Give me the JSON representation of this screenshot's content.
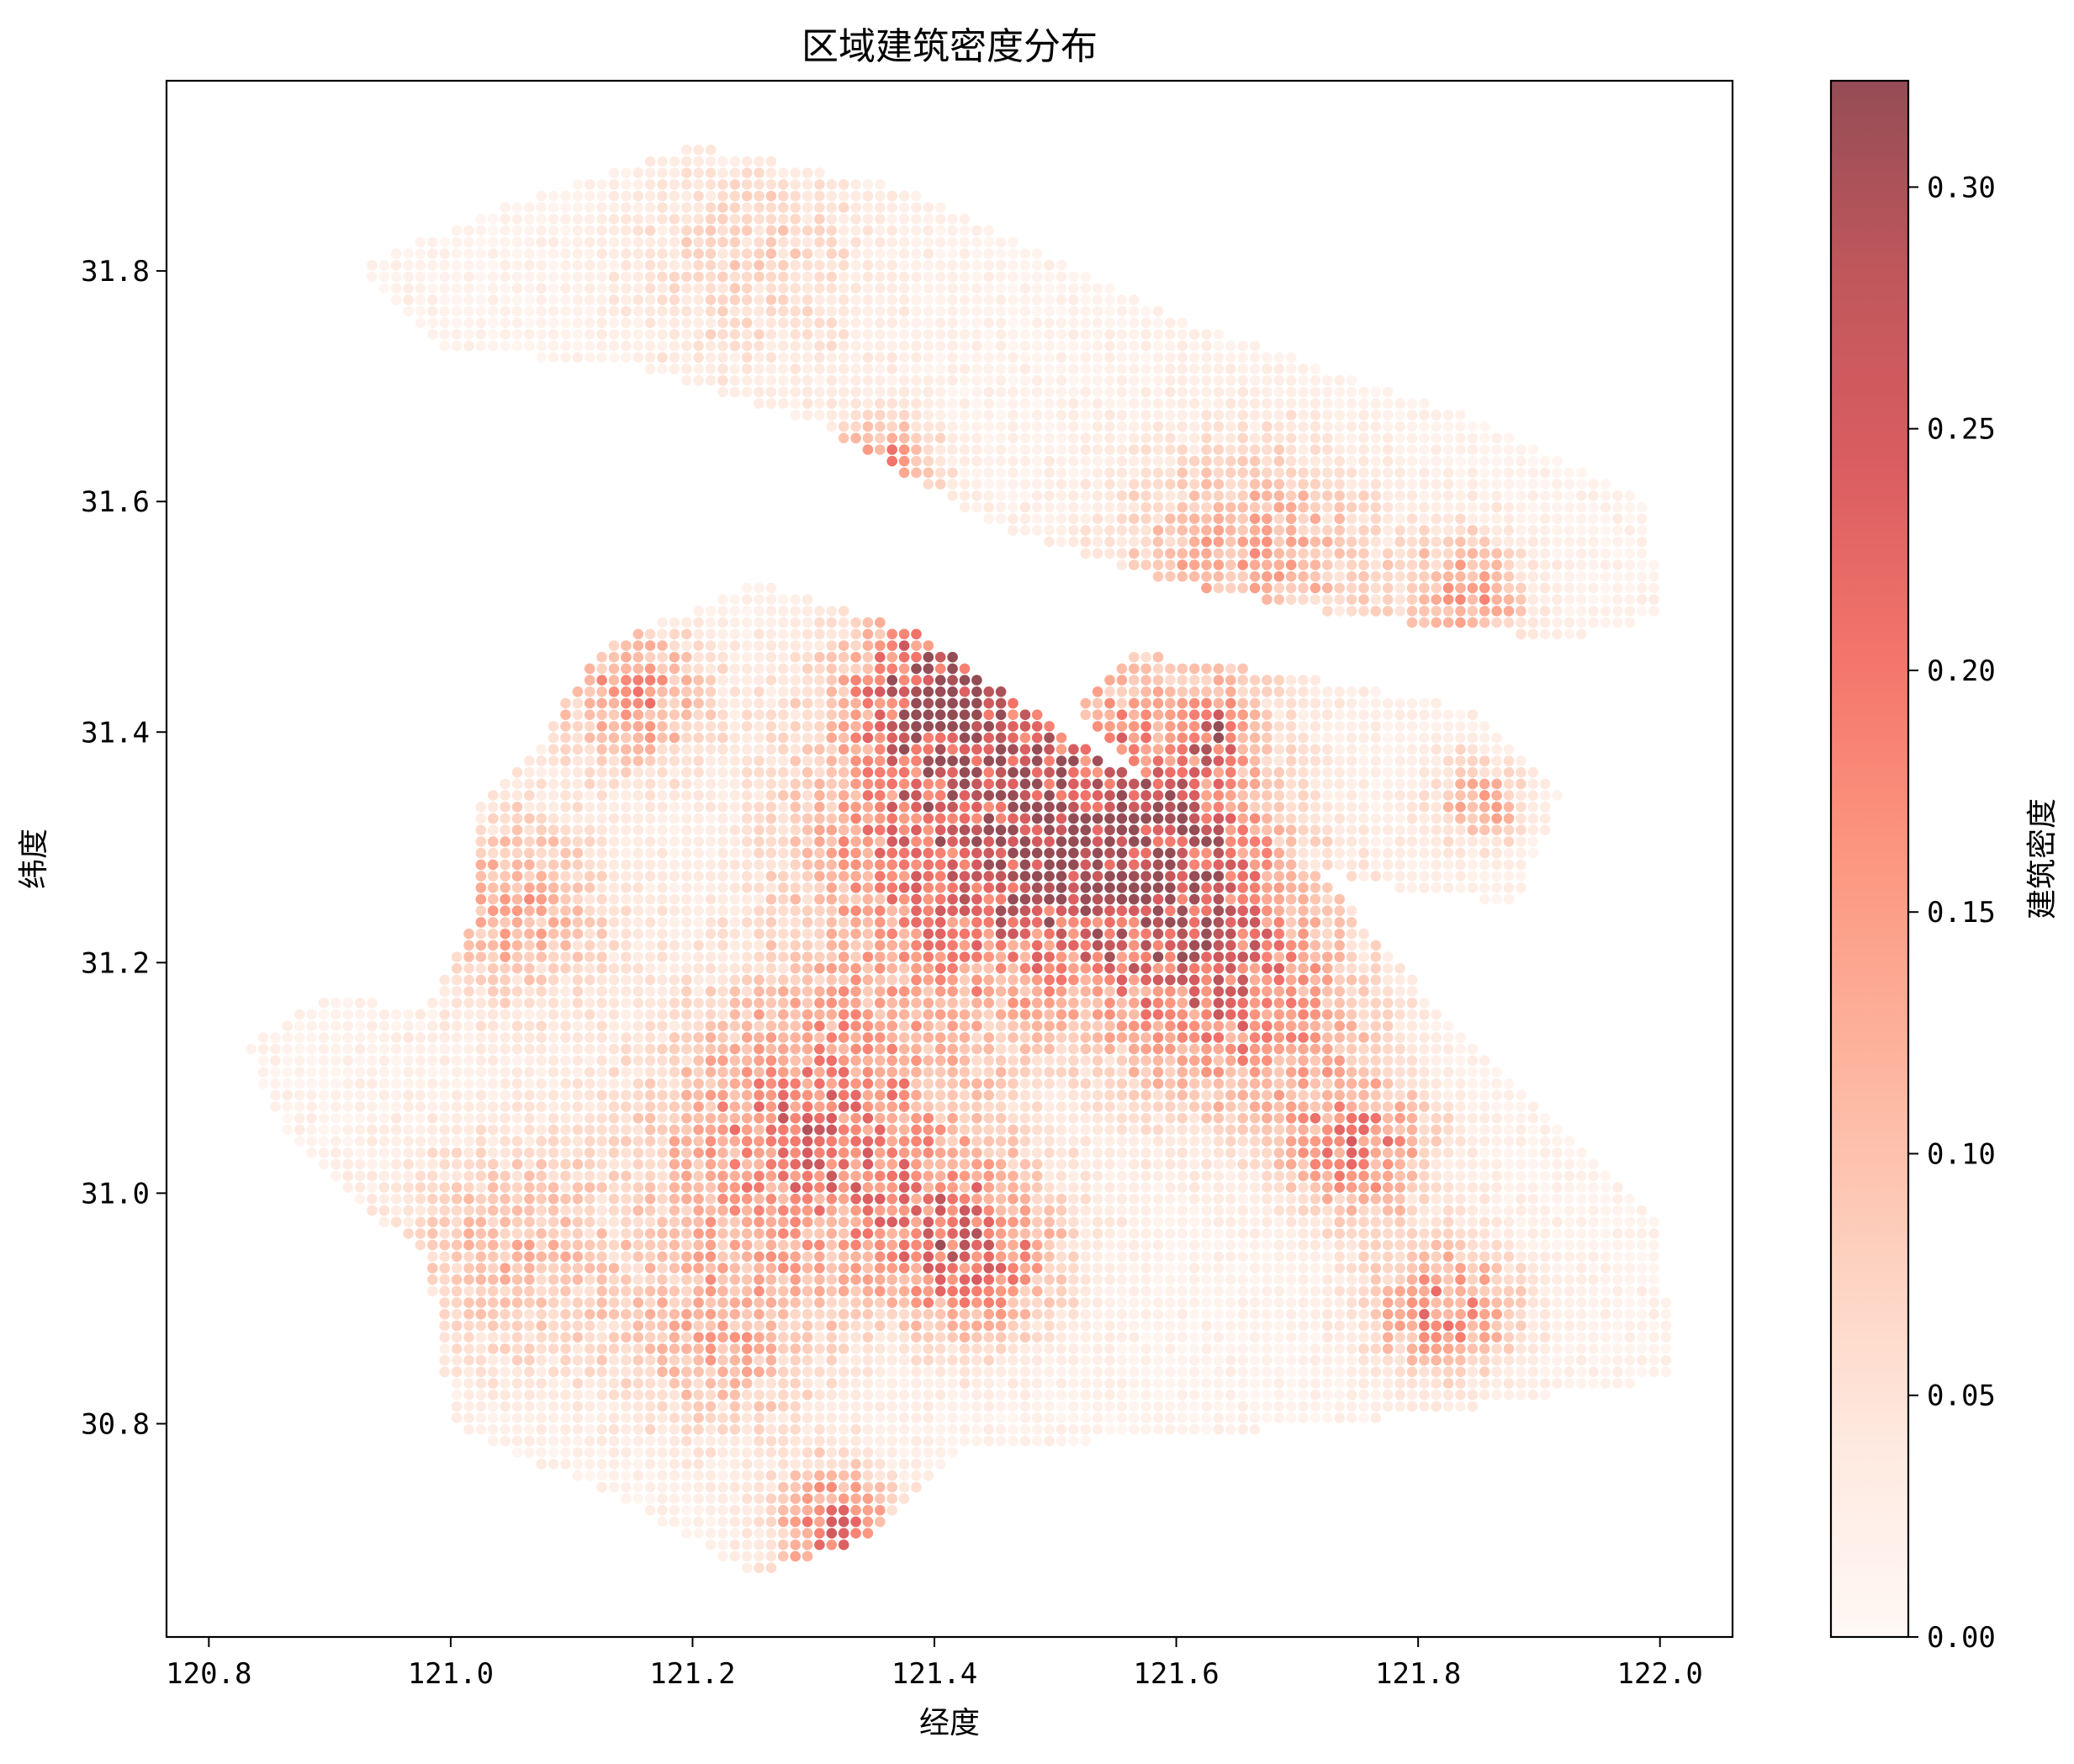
{
  "chart_data": {
    "type": "scatter",
    "title": "区域建筑密度分布",
    "xlabel": "经度",
    "ylabel": "纬度",
    "colorbar_label": "建筑密度",
    "colormap": "Reds",
    "alpha": 0.7,
    "xlim": [
      120.765,
      122.06
    ],
    "ylim": [
      30.615,
      31.965
    ],
    "clim": [
      0.0,
      0.322
    ],
    "xticks": [
      120.8,
      121.0,
      121.2,
      121.4,
      121.6,
      121.8,
      122.0
    ],
    "xtick_labels": [
      "120.8",
      "121.0",
      "121.2",
      "121.4",
      "121.6",
      "121.8",
      "122.0"
    ],
    "yticks": [
      30.8,
      31.0,
      31.2,
      31.4,
      31.6,
      31.8
    ],
    "ytick_labels": [
      "30.8",
      "31.0",
      "31.2",
      "31.4",
      "31.6",
      "31.8"
    ],
    "cticks": [
      0.0,
      0.05,
      0.1,
      0.15,
      0.2,
      0.25,
      0.3
    ],
    "ctick_labels": [
      "0.00",
      "0.05",
      "0.10",
      "0.15",
      "0.20",
      "0.25",
      "0.30"
    ],
    "grid": false,
    "colors": {
      "low": "#fff5f0",
      "high": "#67000d",
      "axes": "#000000",
      "background": "#ffffff"
    },
    "regions": [
      {
        "name": "main",
        "boundary": [
          [
            120.83,
            31.13
          ],
          [
            120.9,
            31.17
          ],
          [
            120.98,
            31.16
          ],
          [
            121.02,
            31.24
          ],
          [
            121.02,
            31.33
          ],
          [
            121.08,
            31.4
          ],
          [
            121.12,
            31.47
          ],
          [
            121.25,
            31.53
          ],
          [
            121.38,
            31.49
          ],
          [
            121.48,
            31.42
          ],
          [
            121.55,
            31.37
          ],
          [
            121.7,
            31.3
          ],
          [
            121.8,
            31.18
          ],
          [
            121.95,
            31.03
          ],
          [
            122.0,
            30.98
          ],
          [
            122.01,
            30.84
          ],
          [
            121.82,
            30.81
          ],
          [
            121.62,
            30.79
          ],
          [
            121.43,
            30.78
          ],
          [
            121.35,
            30.7
          ],
          [
            121.25,
            30.67
          ],
          [
            121.15,
            30.73
          ],
          [
            121.0,
            30.8
          ],
          [
            120.98,
            30.95
          ],
          [
            120.92,
            30.99
          ],
          [
            120.86,
            31.06
          ]
        ]
      },
      {
        "name": "north",
        "boundary": [
          [
            120.92,
            31.8
          ],
          [
            121.05,
            31.86
          ],
          [
            121.2,
            31.91
          ],
          [
            121.38,
            31.87
          ],
          [
            121.6,
            31.76
          ],
          [
            121.85,
            31.67
          ],
          [
            121.99,
            31.6
          ],
          [
            122.0,
            31.5
          ],
          [
            121.92,
            31.48
          ],
          [
            121.75,
            31.5
          ],
          [
            121.6,
            31.53
          ],
          [
            121.45,
            31.58
          ],
          [
            121.3,
            31.67
          ],
          [
            121.15,
            31.72
          ],
          [
            121.0,
            31.73
          ]
        ]
      },
      {
        "name": "island",
        "boundary": [
          [
            121.56,
            31.47
          ],
          [
            121.7,
            31.45
          ],
          [
            121.85,
            31.42
          ],
          [
            121.92,
            31.35
          ],
          [
            121.88,
            31.25
          ],
          [
            121.75,
            31.27
          ],
          [
            121.6,
            31.33
          ],
          [
            121.52,
            31.42
          ]
        ]
      }
    ],
    "hotspots": [
      {
        "x": 121.45,
        "y": 31.31,
        "value": 0.26,
        "spread": 0.14
      },
      {
        "x": 121.41,
        "y": 31.44,
        "value": 0.24,
        "spread": 0.07
      },
      {
        "x": 121.3,
        "y": 31.05,
        "value": 0.2,
        "spread": 0.12
      },
      {
        "x": 121.58,
        "y": 31.3,
        "value": 0.22,
        "spread": 0.09
      },
      {
        "x": 121.65,
        "y": 31.17,
        "value": 0.18,
        "spread": 0.1
      },
      {
        "x": 121.43,
        "y": 30.95,
        "value": 0.2,
        "spread": 0.07
      },
      {
        "x": 121.32,
        "y": 30.71,
        "value": 0.2,
        "spread": 0.05
      },
      {
        "x": 121.75,
        "y": 31.04,
        "value": 0.17,
        "spread": 0.06
      },
      {
        "x": 121.82,
        "y": 30.9,
        "value": 0.16,
        "spread": 0.06
      },
      {
        "x": 121.15,
        "y": 31.43,
        "value": 0.15,
        "spread": 0.06
      },
      {
        "x": 121.05,
        "y": 31.25,
        "value": 0.12,
        "spread": 0.08
      },
      {
        "x": 121.36,
        "y": 31.63,
        "value": 0.18,
        "spread": 0.04
      },
      {
        "x": 121.66,
        "y": 31.55,
        "value": 0.12,
        "spread": 0.1
      },
      {
        "x": 121.84,
        "y": 31.52,
        "value": 0.13,
        "spread": 0.05
      },
      {
        "x": 121.25,
        "y": 31.81,
        "value": 0.06,
        "spread": 0.1
      },
      {
        "x": 121.63,
        "y": 31.4,
        "value": 0.16,
        "spread": 0.03
      },
      {
        "x": 121.85,
        "y": 31.34,
        "value": 0.12,
        "spread": 0.04
      },
      {
        "x": 121.05,
        "y": 30.95,
        "value": 0.09,
        "spread": 0.1
      },
      {
        "x": 121.22,
        "y": 30.87,
        "value": 0.1,
        "spread": 0.08
      }
    ],
    "grid_step_deg": 0.01
  }
}
